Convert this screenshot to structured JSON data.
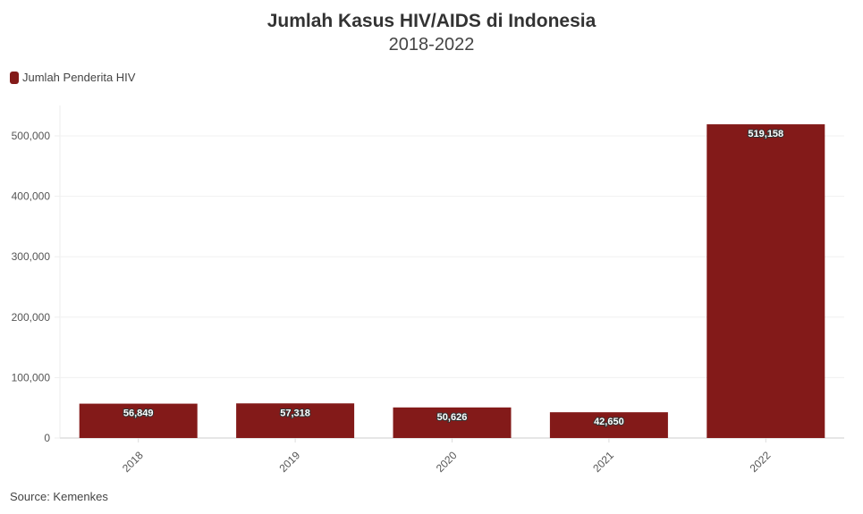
{
  "chart_data": {
    "type": "bar",
    "title": "Jumlah Kasus HIV/AIDS di Indonesia",
    "subtitle": "2018-2022",
    "categories": [
      "2018",
      "2019",
      "2020",
      "2021",
      "2022"
    ],
    "series": [
      {
        "name": "Jumlah Penderita HIV",
        "values": [
          56849,
          57318,
          50626,
          42650,
          519158
        ],
        "color": "#831a19"
      }
    ],
    "data_labels": [
      "56,849",
      "57,318",
      "50,626",
      "42,650",
      "519,158"
    ],
    "y_ticks": [
      0,
      100000,
      200000,
      300000,
      400000,
      500000
    ],
    "y_tick_labels": [
      "0",
      "100,000",
      "200,000",
      "300,000",
      "400,000",
      "500,000"
    ],
    "ylim": [
      0,
      550000
    ],
    "grid": true,
    "legend_position": "top-left",
    "source": "Source: Kemenkes"
  }
}
